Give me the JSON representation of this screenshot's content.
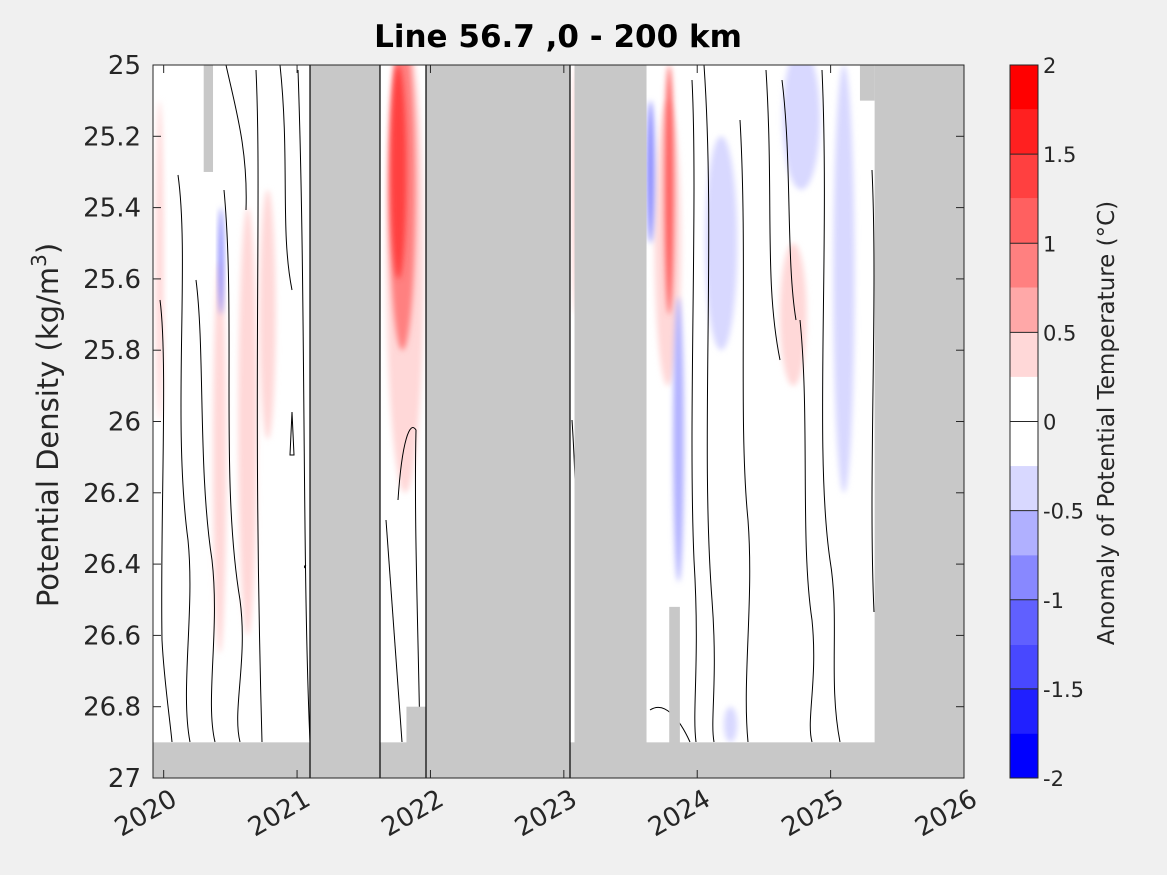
{
  "chart_data": {
    "type": "heatmap",
    "title": "Line 56.7 ,0 - 200 km",
    "ylabel_main": "Potential Density (kg/m",
    "ylabel_sup": "3",
    "ylabel_close": ")",
    "xlim": [
      2019.92,
      2026.0
    ],
    "ylim": [
      25.0,
      27.0
    ],
    "y_reversed": true,
    "x_ticks": [
      2020,
      2021,
      2022,
      2023,
      2024,
      2025,
      2026
    ],
    "x_tick_labels": [
      "2020",
      "2021",
      "2022",
      "2023",
      "2024",
      "2025",
      "2026"
    ],
    "y_ticks": [
      25,
      25.2,
      25.4,
      25.6,
      25.8,
      26,
      26.2,
      26.4,
      26.6,
      26.8,
      27
    ],
    "y_tick_labels": [
      "25",
      "25.2",
      "25.4",
      "25.6",
      "25.8",
      "26",
      "26.2",
      "26.4",
      "26.6",
      "26.8",
      "27"
    ],
    "colorbar": {
      "label": "Anomaly of Potential Temperature (°C)",
      "range": [
        -2,
        2
      ],
      "ticks": [
        2,
        1.5,
        1,
        0.5,
        0,
        -0.5,
        -1,
        -1.5,
        -2
      ],
      "tick_labels": [
        "2",
        "1.5",
        "1",
        "0.5",
        "0",
        "-0.5",
        "-1",
        "-1.5",
        "-2"
      ],
      "levels": [
        {
          "from": 1.75,
          "to": 2.0,
          "color": "#ff0000"
        },
        {
          "from": 1.5,
          "to": 1.75,
          "color": "#ff2020"
        },
        {
          "from": 1.25,
          "to": 1.5,
          "color": "#ff4040"
        },
        {
          "from": 1.0,
          "to": 1.25,
          "color": "#ff6060"
        },
        {
          "from": 0.75,
          "to": 1.0,
          "color": "#ff8080"
        },
        {
          "from": 0.5,
          "to": 0.75,
          "color": "#ffa8a8"
        },
        {
          "from": 0.25,
          "to": 0.5,
          "color": "#ffd8d8"
        },
        {
          "from": -0.25,
          "to": 0.25,
          "color": "#ffffff"
        },
        {
          "from": -0.5,
          "to": -0.25,
          "color": "#d8d8ff"
        },
        {
          "from": -0.75,
          "to": -0.5,
          "color": "#b0b0ff"
        },
        {
          "from": -1.0,
          "to": -0.75,
          "color": "#8888ff"
        },
        {
          "from": -1.25,
          "to": -1.0,
          "color": "#6060ff"
        },
        {
          "from": -1.5,
          "to": -1.25,
          "color": "#4848ff"
        },
        {
          "from": -1.75,
          "to": -1.5,
          "color": "#2020ff"
        },
        {
          "from": -2.0,
          "to": -1.75,
          "color": "#0000ff"
        }
      ]
    },
    "no_data_color": "#c8c8c8",
    "no_data_regions": [
      {
        "x": [
          2021.1,
          2021.62
        ],
        "y": [
          25.0,
          27.0
        ]
      },
      {
        "x": [
          2021.97,
          2023.05
        ],
        "y": [
          25.0,
          27.0
        ]
      },
      {
        "x": [
          2023.08,
          2023.62
        ],
        "y": [
          25.0,
          27.0
        ]
      },
      {
        "x": [
          2025.33,
          2026.0
        ],
        "y": [
          25.0,
          27.0
        ]
      },
      {
        "x": [
          2019.92,
          2026.0
        ],
        "y": [
          26.9,
          27.0
        ]
      },
      {
        "x": [
          2021.82,
          2021.97
        ],
        "y": [
          26.8,
          27.0
        ]
      },
      {
        "x": [
          2020.3,
          2020.37
        ],
        "y": [
          25.0,
          25.3
        ]
      },
      {
        "x": [
          2023.79,
          2023.87
        ],
        "y": [
          26.52,
          27.0
        ]
      },
      {
        "x": [
          2025.22,
          2025.33
        ],
        "y": [
          25.0,
          25.1
        ]
      }
    ],
    "anomaly_features": [
      {
        "x": 2019.97,
        "y": 25.55,
        "rx": 0.03,
        "ry": 0.45,
        "value": 0.3
      },
      {
        "x": 2020.42,
        "y": 26.1,
        "rx": 0.05,
        "ry": 0.55,
        "value": 0.3
      },
      {
        "x": 2020.63,
        "y": 26.0,
        "rx": 0.07,
        "ry": 0.6,
        "value": 0.3
      },
      {
        "x": 2020.78,
        "y": 25.7,
        "rx": 0.06,
        "ry": 0.35,
        "value": 0.3
      },
      {
        "x": 2020.43,
        "y": 25.55,
        "rx": 0.02,
        "ry": 0.15,
        "value": -0.8
      },
      {
        "x": 2021.81,
        "y": 25.55,
        "rx": 0.14,
        "ry": 0.65,
        "value": 0.4
      },
      {
        "x": 2021.79,
        "y": 25.35,
        "rx": 0.1,
        "ry": 0.45,
        "value": 0.8
      },
      {
        "x": 2021.76,
        "y": 25.3,
        "rx": 0.06,
        "ry": 0.3,
        "value": 1.3
      },
      {
        "x": 2023.09,
        "y": 25.35,
        "rx": 0.03,
        "ry": 0.35,
        "value": 0.4
      },
      {
        "x": 2023.78,
        "y": 25.5,
        "rx": 0.1,
        "ry": 0.4,
        "value": 0.3
      },
      {
        "x": 2023.79,
        "y": 25.35,
        "rx": 0.035,
        "ry": 0.35,
        "value": 1.2
      },
      {
        "x": 2023.65,
        "y": 25.3,
        "rx": 0.03,
        "ry": 0.2,
        "value": -1.0
      },
      {
        "x": 2023.86,
        "y": 26.05,
        "rx": 0.04,
        "ry": 0.4,
        "value": -0.6
      },
      {
        "x": 2024.18,
        "y": 25.5,
        "rx": 0.12,
        "ry": 0.3,
        "value": -0.4
      },
      {
        "x": 2024.72,
        "y": 25.7,
        "rx": 0.1,
        "ry": 0.2,
        "value": 0.3
      },
      {
        "x": 2024.78,
        "y": 25.15,
        "rx": 0.14,
        "ry": 0.2,
        "value": -0.4
      },
      {
        "x": 2025.1,
        "y": 25.6,
        "rx": 0.08,
        "ry": 0.6,
        "value": -0.3
      },
      {
        "x": 2024.25,
        "y": 26.85,
        "rx": 0.05,
        "ry": 0.05,
        "value": -0.3
      }
    ]
  }
}
